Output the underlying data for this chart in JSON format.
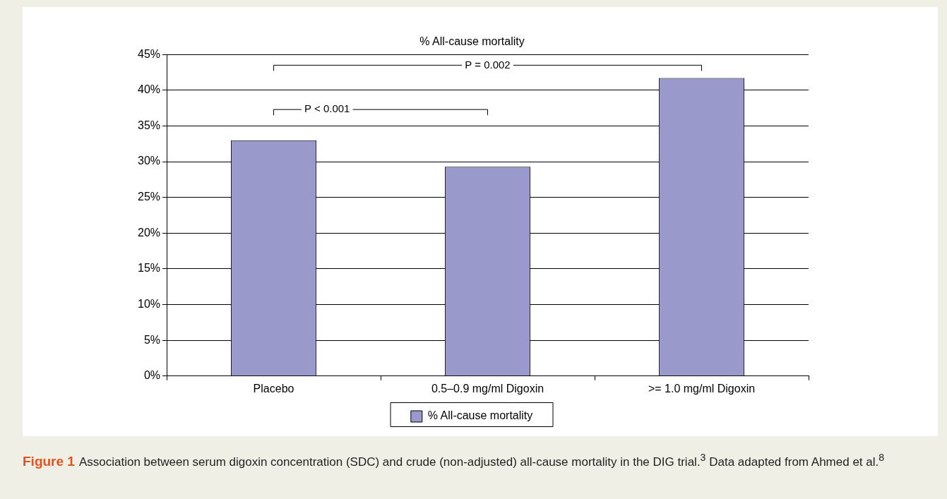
{
  "chart_data": {
    "type": "bar",
    "title": "% All-cause mortality",
    "categories": [
      "Placebo",
      "0.5–0.9 mg/ml Digoxin",
      ">= 1.0 mg/ml Digoxin"
    ],
    "series": [
      {
        "name": "% All-cause mortality",
        "color": "#9999cc",
        "values": [
          33.0,
          29.3,
          41.7
        ]
      }
    ],
    "ylim": [
      0,
      45
    ],
    "yticks": [
      {
        "value": 0,
        "label": "0%"
      },
      {
        "value": 5,
        "label": "5%"
      },
      {
        "value": 10,
        "label": "10%"
      },
      {
        "value": 15,
        "label": "15%"
      },
      {
        "value": 20,
        "label": "20%"
      },
      {
        "value": 25,
        "label": "25%"
      },
      {
        "value": 30,
        "label": "30%"
      },
      {
        "value": 35,
        "label": "35%"
      },
      {
        "value": 40,
        "label": "40%"
      },
      {
        "value": 45,
        "label": "45%"
      }
    ],
    "grid": "y",
    "legend": "bottom",
    "annotations": [
      "P < 0.001",
      "P = 0.002",
      "Figure 1",
      "Association between serum digoxin concentration (SDC) and crude (non-adjusted) all-cause mortality in the DIG trial.$^{3}$ Data adapted from Ahmed et al.$^{8}$"
    ]
  }
}
